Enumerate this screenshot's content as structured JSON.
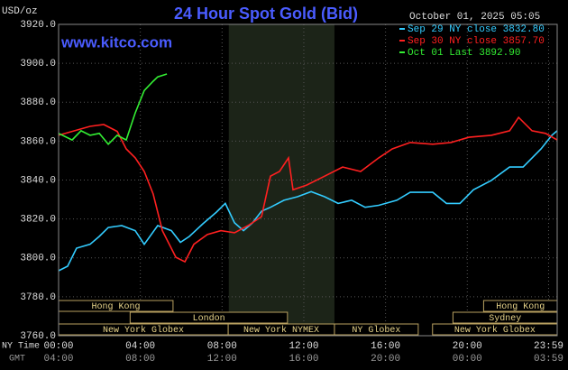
{
  "chart_data": {
    "type": "line",
    "title": "24 Hour Spot Gold (Bid)",
    "subtitle": "www.kitco.com",
    "timestamp": "October 01, 2025 05:05",
    "y_label": "USD/oz",
    "x_label": "NY Time",
    "x2_label": "GMT",
    "xlim": [
      0,
      24.4
    ],
    "ylim": [
      3760,
      3920
    ],
    "yticks": [
      {
        "value": 3760,
        "label": "3760.0"
      },
      {
        "value": 3780,
        "label": "3780.0"
      },
      {
        "value": 3800,
        "label": "3800.0"
      },
      {
        "value": 3820,
        "label": "3820.0"
      },
      {
        "value": 3840,
        "label": "3840.0"
      },
      {
        "value": 3860,
        "label": "3860.0"
      },
      {
        "value": 3880,
        "label": "3880.0"
      },
      {
        "value": 3900,
        "label": "3900.0"
      },
      {
        "value": 3920,
        "label": "3920.0"
      }
    ],
    "xticks": [
      {
        "value": 0,
        "label": "00:00"
      },
      {
        "value": 4,
        "label": "04:00"
      },
      {
        "value": 8,
        "label": "08:00"
      },
      {
        "value": 12,
        "label": "12:00"
      },
      {
        "value": 16,
        "label": "16:00"
      },
      {
        "value": 20,
        "label": "20:00"
      },
      {
        "value": 23.98,
        "label": "23:59"
      }
    ],
    "x2ticks": [
      {
        "value": 0,
        "label": "04:00"
      },
      {
        "value": 4,
        "label": "08:00"
      },
      {
        "value": 8,
        "label": "12:00"
      },
      {
        "value": 12,
        "label": "16:00"
      },
      {
        "value": 16,
        "label": "20:00"
      },
      {
        "value": 20,
        "label": "00:00"
      },
      {
        "value": 23.98,
        "label": "03:59"
      }
    ],
    "grid": true,
    "shaded_range": [
      8.33,
      13.5
    ],
    "sessions": [
      {
        "label": "Hong Kong",
        "start": 0,
        "end": 5.6,
        "row": 0
      },
      {
        "label": "London",
        "start": 3.5,
        "end": 11.2,
        "row": 1
      },
      {
        "label": "New York Globex",
        "start": 0,
        "end": 8.3,
        "row": 2
      },
      {
        "label": "New York NYMEX",
        "start": 8.3,
        "end": 13.5,
        "row": 2
      },
      {
        "label": "NY Globex",
        "start": 13.5,
        "end": 17.6,
        "row": 2
      },
      {
        "label": "Hong Kong",
        "start": 20.8,
        "end": 24.4,
        "row": 0
      },
      {
        "label": "Sydney",
        "start": 19.3,
        "end": 24.4,
        "row": 1
      },
      {
        "label": "New York Globex",
        "start": 18.3,
        "end": 24.4,
        "row": 2
      }
    ],
    "series": [
      {
        "name": "Sep 29 NY close 3832.80",
        "color": "#33ccff",
        "x": [
          0,
          0.44,
          0.88,
          1.54,
          1.99,
          2.43,
          3.09,
          3.75,
          4.19,
          4.85,
          5.52,
          5.96,
          6.4,
          7.06,
          7.72,
          8.16,
          8.61,
          9.05,
          9.49,
          9.93,
          10.37,
          11.03,
          11.69,
          12.36,
          13.02,
          13.68,
          14.34,
          15.0,
          15.67,
          16.55,
          17.21,
          18.31,
          18.98,
          19.64,
          20.3,
          21.18,
          22.07,
          22.73,
          23.61,
          24.14,
          24.4
        ],
        "values": [
          3793.4,
          3795.7,
          3805,
          3807,
          3811,
          3815.6,
          3816.6,
          3814,
          3807,
          3816.6,
          3814,
          3808,
          3811,
          3817.5,
          3823.5,
          3828,
          3818,
          3814,
          3818,
          3824,
          3826,
          3829.6,
          3831.4,
          3834,
          3831.4,
          3828,
          3829.6,
          3826,
          3827,
          3829.6,
          3833.7,
          3833.7,
          3828,
          3828,
          3835,
          3839.8,
          3846.7,
          3846.7,
          3856,
          3863,
          3865.3
        ]
      },
      {
        "name": "Sep 30 NY close 3857.70",
        "color": "#ff2020",
        "x": [
          0,
          0.66,
          1.54,
          2.21,
          2.87,
          3.31,
          3.75,
          4.19,
          4.63,
          5.08,
          5.74,
          6.18,
          6.62,
          7.28,
          7.94,
          8.61,
          9.27,
          9.93,
          10.37,
          10.81,
          11.25,
          11.47,
          12.14,
          13.02,
          13.9,
          14.78,
          15.67,
          16.33,
          17.21,
          18.31,
          19.2,
          20.08,
          21.18,
          22.07,
          22.51,
          23.17,
          23.83,
          24.4
        ],
        "values": [
          3863,
          3865,
          3867.6,
          3868.5,
          3865,
          3856,
          3851.4,
          3844.4,
          3832.8,
          3814,
          3800.3,
          3798,
          3807,
          3812,
          3814,
          3812.9,
          3816.6,
          3821.2,
          3842,
          3844.4,
          3851.4,
          3835,
          3837.4,
          3842,
          3846.7,
          3844.4,
          3851.4,
          3856,
          3859.3,
          3858.4,
          3859.3,
          3862,
          3863,
          3865.3,
          3872.2,
          3865.3,
          3864,
          3860.6
        ]
      },
      {
        "name": "Oct 01 Last 3892.90",
        "color": "#33ee33",
        "x": [
          0,
          0.66,
          1.1,
          1.54,
          1.99,
          2.43,
          2.87,
          3.31,
          3.75,
          4.19,
          4.63,
          4.85,
          5.3
        ],
        "values": [
          3864,
          3860.6,
          3865.3,
          3863,
          3864,
          3858.4,
          3863,
          3860.6,
          3874.5,
          3886,
          3890.8,
          3893,
          3894.5
        ]
      }
    ]
  }
}
